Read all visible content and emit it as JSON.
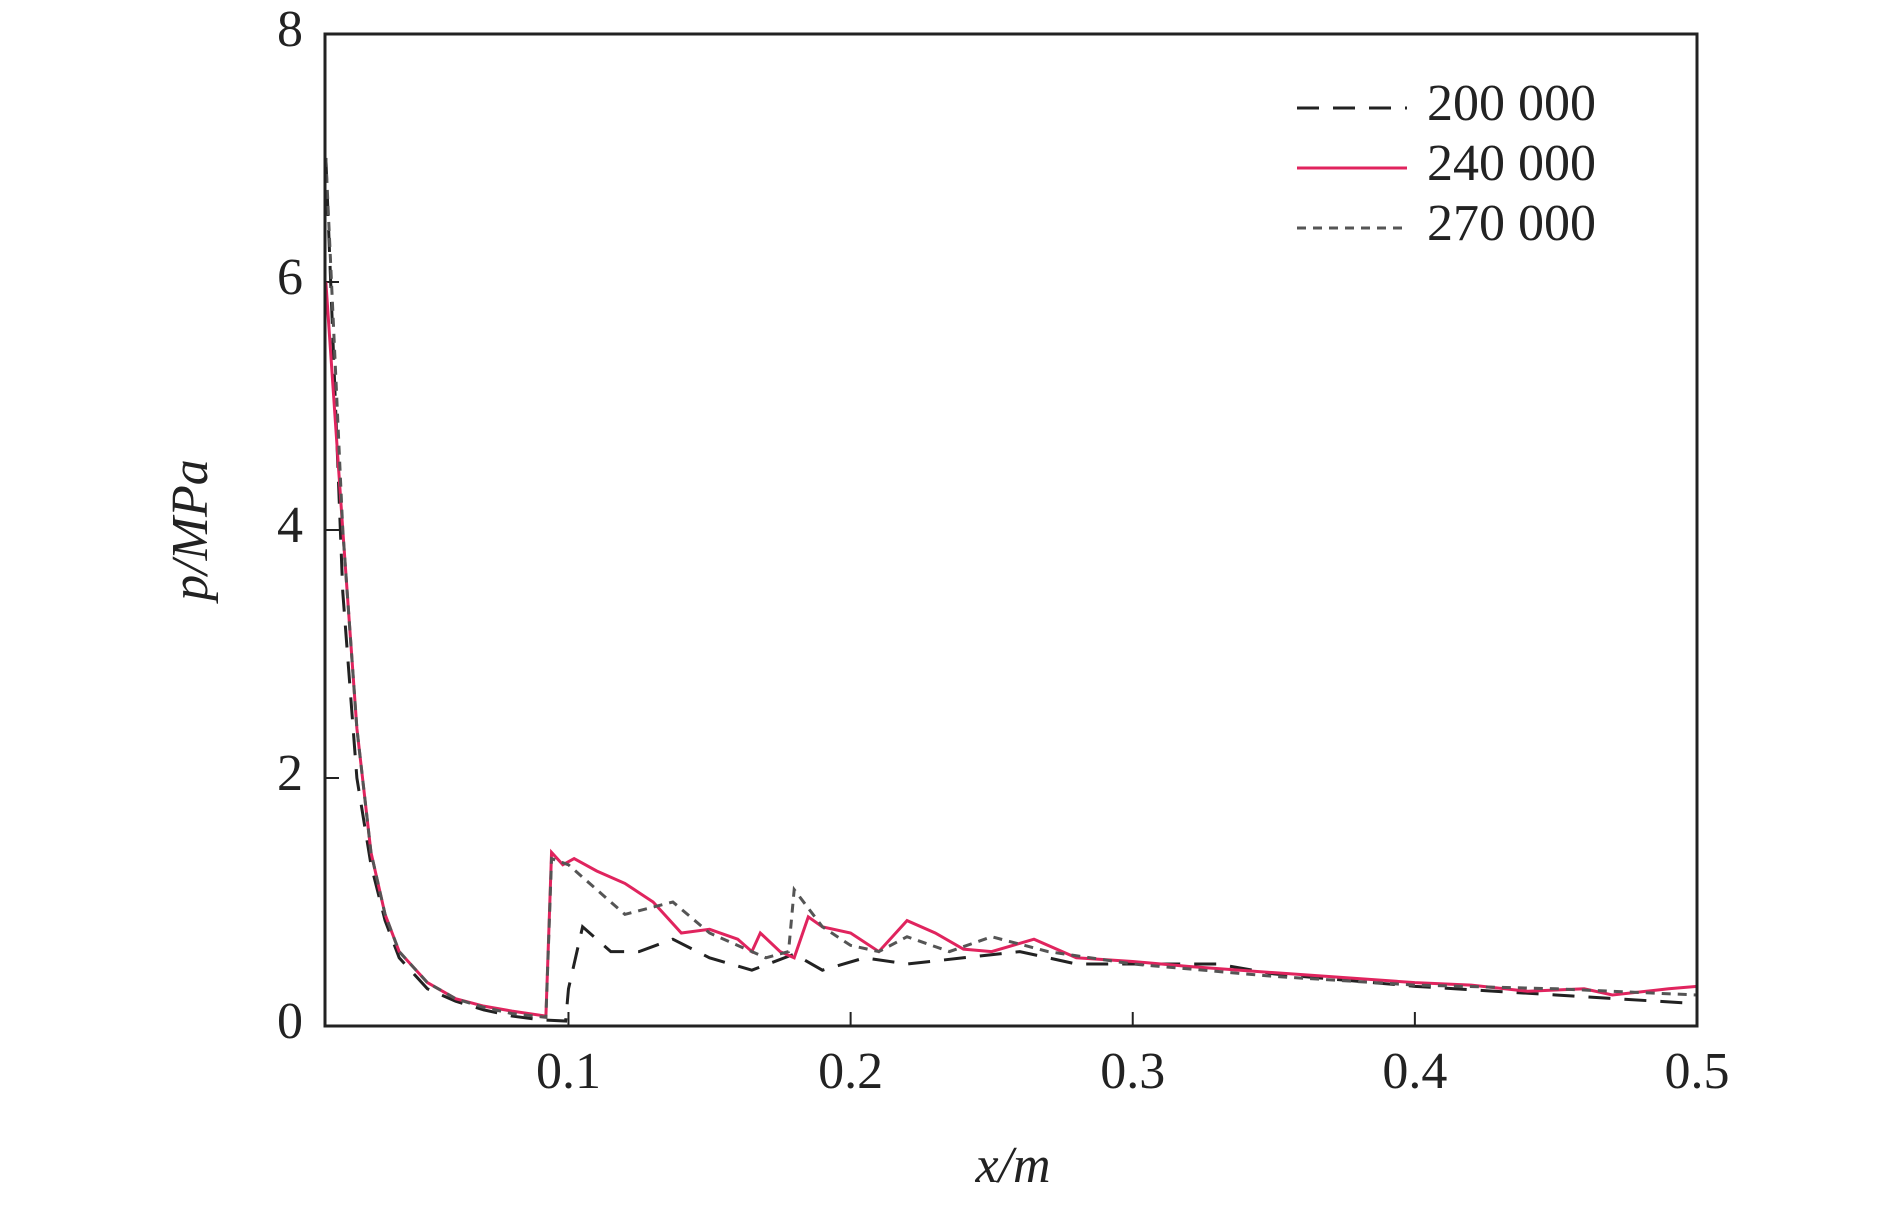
{
  "chart_data": {
    "type": "line",
    "x_label": "x/m",
    "y_label": "p/MPa",
    "xlim": [
      0.0137,
      0.5
    ],
    "ylim": [
      0,
      8
    ],
    "xticks": [
      0.1,
      0.2,
      0.3,
      0.4,
      0.5
    ],
    "yticks": [
      0,
      2,
      4,
      6,
      8
    ],
    "legend": "upper right",
    "series": [
      {
        "name": "200 000",
        "color": "#222222",
        "dash": "long",
        "x": [
          0.014,
          0.02,
          0.025,
          0.03,
          0.035,
          0.04,
          0.05,
          0.06,
          0.07,
          0.08,
          0.09,
          0.099,
          0.1,
          0.105,
          0.115,
          0.125,
          0.137,
          0.15,
          0.165,
          0.18,
          0.19,
          0.205,
          0.22,
          0.24,
          0.26,
          0.28,
          0.3,
          0.33,
          0.35,
          0.4,
          0.45,
          0.5
        ],
        "values": [
          7.0,
          3.5,
          2.0,
          1.3,
          0.85,
          0.55,
          0.3,
          0.2,
          0.13,
          0.08,
          0.05,
          0.04,
          0.3,
          0.8,
          0.6,
          0.6,
          0.7,
          0.55,
          0.45,
          0.58,
          0.45,
          0.55,
          0.5,
          0.55,
          0.6,
          0.5,
          0.5,
          0.5,
          0.42,
          0.32,
          0.25,
          0.18
        ]
      },
      {
        "name": "240 000",
        "color": "#e0245e",
        "dash": "solid",
        "x": [
          0.014,
          0.02,
          0.025,
          0.03,
          0.035,
          0.04,
          0.05,
          0.06,
          0.07,
          0.08,
          0.092,
          0.094,
          0.098,
          0.102,
          0.11,
          0.12,
          0.13,
          0.14,
          0.15,
          0.16,
          0.165,
          0.168,
          0.175,
          0.18,
          0.185,
          0.19,
          0.2,
          0.21,
          0.22,
          0.23,
          0.24,
          0.25,
          0.265,
          0.28,
          0.3,
          0.32,
          0.35,
          0.4,
          0.42,
          0.44,
          0.46,
          0.47,
          0.49,
          0.5
        ],
        "values": [
          6.0,
          4.0,
          2.4,
          1.4,
          0.9,
          0.6,
          0.35,
          0.22,
          0.16,
          0.12,
          0.08,
          1.4,
          1.3,
          1.35,
          1.25,
          1.15,
          1.0,
          0.75,
          0.78,
          0.7,
          0.6,
          0.75,
          0.6,
          0.55,
          0.88,
          0.8,
          0.75,
          0.6,
          0.85,
          0.75,
          0.62,
          0.6,
          0.7,
          0.55,
          0.52,
          0.48,
          0.43,
          0.35,
          0.33,
          0.28,
          0.3,
          0.25,
          0.3,
          0.32
        ]
      },
      {
        "name": "270 000",
        "color": "#555555",
        "dash": "short",
        "x": [
          0.014,
          0.02,
          0.025,
          0.03,
          0.035,
          0.04,
          0.05,
          0.06,
          0.07,
          0.08,
          0.092,
          0.094,
          0.1,
          0.11,
          0.12,
          0.137,
          0.15,
          0.17,
          0.178,
          0.18,
          0.19,
          0.2,
          0.21,
          0.22,
          0.235,
          0.25,
          0.27,
          0.3,
          0.35,
          0.4,
          0.45,
          0.5
        ],
        "values": [
          7.0,
          4.0,
          2.4,
          1.4,
          0.9,
          0.6,
          0.35,
          0.22,
          0.15,
          0.1,
          0.07,
          1.35,
          1.3,
          1.1,
          0.9,
          1.0,
          0.75,
          0.55,
          0.6,
          1.1,
          0.8,
          0.65,
          0.6,
          0.72,
          0.6,
          0.72,
          0.6,
          0.5,
          0.4,
          0.33,
          0.3,
          0.25
        ]
      }
    ]
  }
}
